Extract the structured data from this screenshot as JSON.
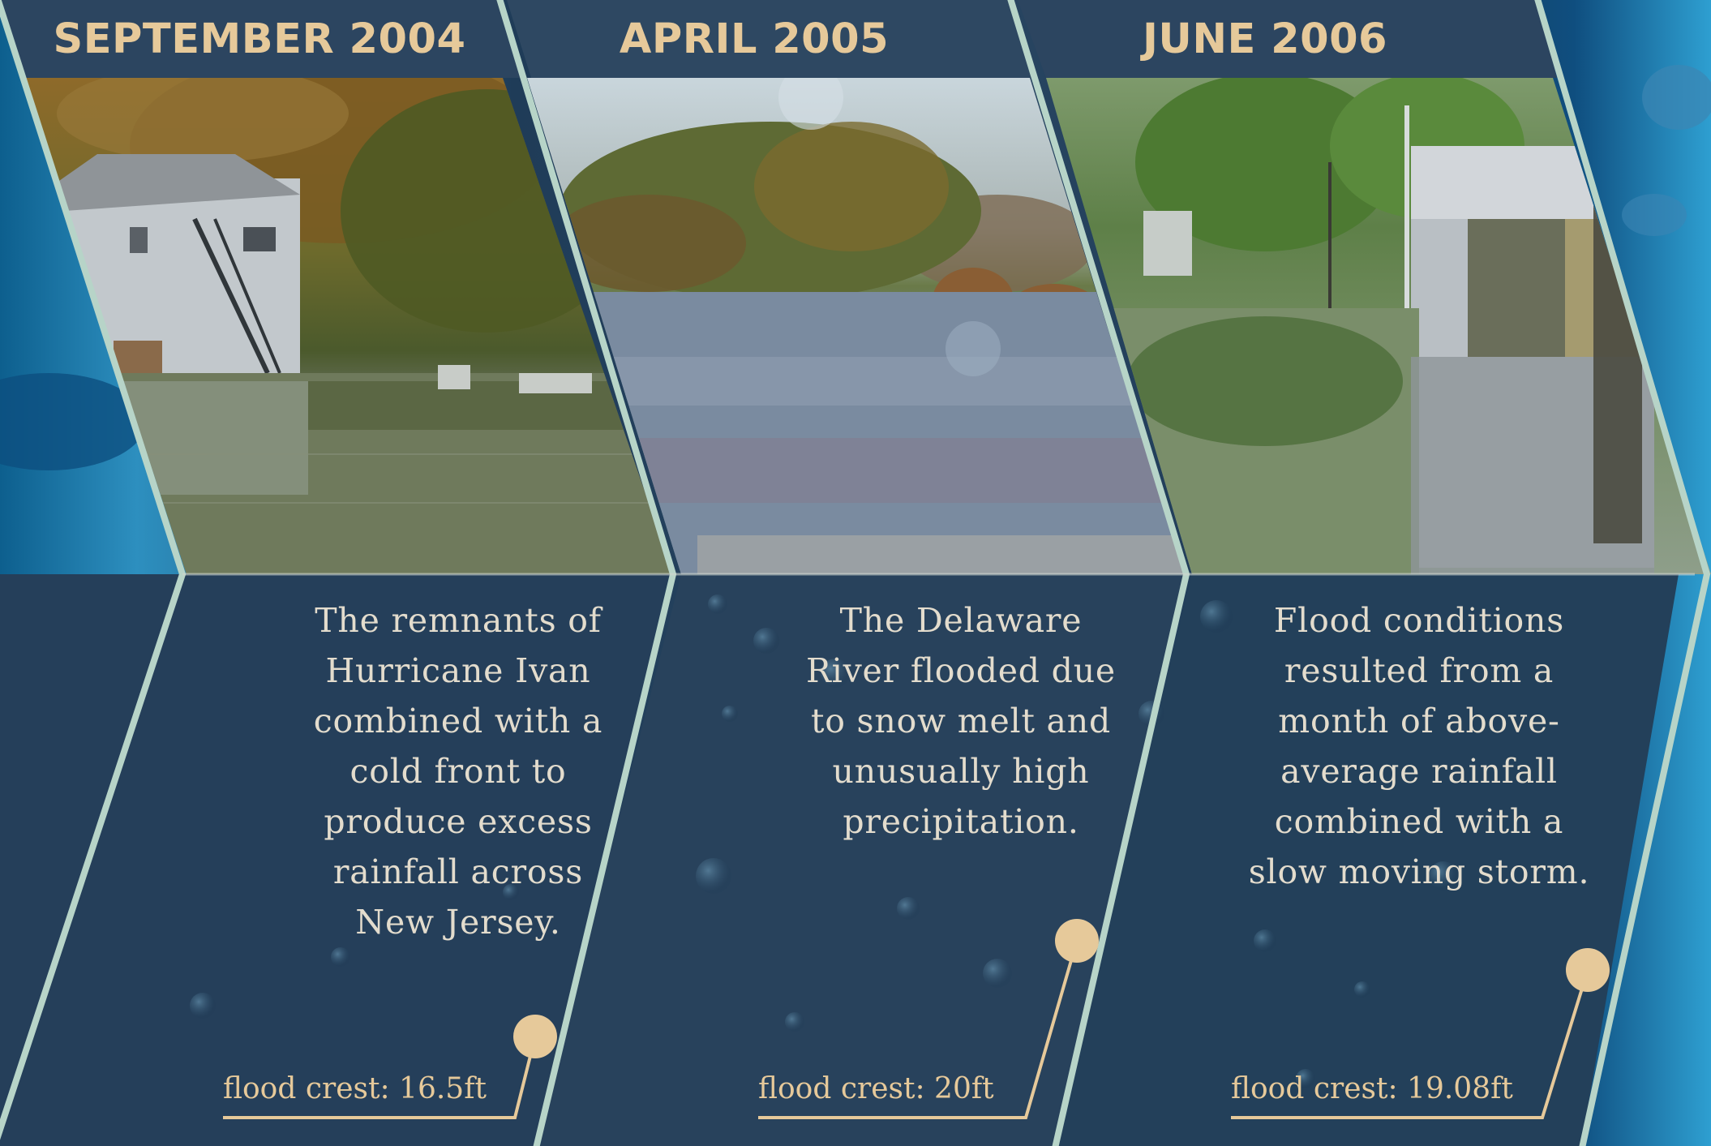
{
  "panels": [
    {
      "date": "SEPTEMBER 2004",
      "description": "The remnants of\nHurricane Ivan\ncombined with a\ncold front to\nproduce excess\nrainfall across\nNew Jersey.",
      "crest": "flood crest: 16.5ft",
      "photo": "flooded-lakeside-house-photo"
    },
    {
      "date": "APRIL 2005",
      "description": "The Delaware\nRiver flooded due\nto snow melt and\nunusually high\nprecipitation.",
      "crest": "flood crest: 20ft",
      "photo": "flooded-delaware-river-photo"
    },
    {
      "date": "JUNE 2006",
      "description": "Flood conditions\nresulted from a\nmonth of above-\naverage rainfall\ncombined with a\nslow moving storm.",
      "crest": "flood crest: 19.08ft",
      "photo": "flooded-street-photo"
    }
  ],
  "colors": {
    "accent": "#e6c99a",
    "frame": "#b7d4c8",
    "panel": "#253f5a",
    "header": "#2c4560"
  }
}
